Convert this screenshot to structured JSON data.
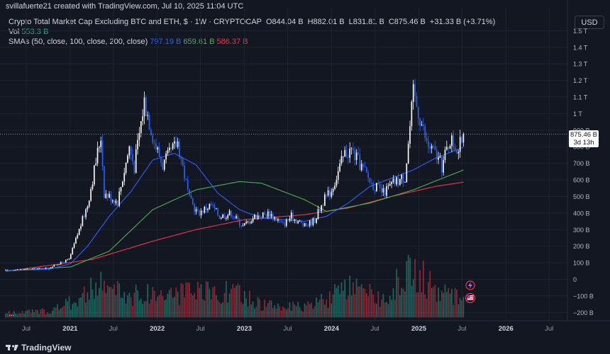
{
  "header": {
    "credit": "svillafuerte21 created with TradingView.com, Jul 10, 2025 11:04 UTC"
  },
  "legend": {
    "title": "Crypto Total Market Cap Excluding BTC and ETH, $ · 1W · CRYPTOCAP",
    "ohlc": {
      "open": "O844.04 B",
      "high": "H882.01 B",
      "low": "L831.81 B",
      "close": "C875.46 B",
      "change": "+31.33 B (+3.71%)"
    },
    "vol_label": "Vol",
    "vol_value": "553.3 B",
    "sma_label": "SMAs (50, close, 100, close, 200, close)",
    "sma50": "797.19 B",
    "sma100": "659.61 B",
    "sma200": "586.37 B",
    "more": "..."
  },
  "price_scale": {
    "currency": "USD",
    "ticks": [
      "1.5 T",
      "1.4 T",
      "1.3 T",
      "1.2 T",
      "1.1 T",
      "1 T",
      "900 B",
      "800 B",
      "700 B",
      "600 B",
      "500 B",
      "400 B",
      "300 B",
      "200 B",
      "100 B",
      "0",
      "−100 B",
      "−200 B"
    ],
    "last_price": "875.46 B",
    "countdown": "3d 13h"
  },
  "time_scale": {
    "ticks": [
      "Jul",
      "2021",
      "Jul",
      "2022",
      "Jul",
      "2023",
      "Jul",
      "2024",
      "Jul",
      "2025",
      "Jul",
      "2026",
      "Jul"
    ]
  },
  "branding": {
    "name": "TradingView"
  },
  "colors": {
    "background": "#131722",
    "candle_up": "#ffffff",
    "candle_down": "#2962ff",
    "sma50": "#2962ff",
    "sma100": "#4caf50",
    "sma200": "#f23645",
    "vol_up": "#22ab94",
    "vol_down": "#f23645",
    "grid": "#1f2330"
  },
  "chart_data": {
    "type": "candlestick",
    "timeframe": "1W",
    "unit": "B USD",
    "ylim": [
      -250,
      1600
    ],
    "xlim": [
      "2020-04-06",
      "2026-08-17"
    ],
    "grid": true,
    "price_keypoints": [
      [
        "2020-04-06",
        55
      ],
      [
        "2020-07-06",
        62
      ],
      [
        "2020-10-05",
        70
      ],
      [
        "2020-12-28",
        120
      ],
      [
        "2021-02-15",
        330
      ],
      [
        "2021-03-15",
        450
      ],
      [
        "2021-05-10",
        870
      ],
      [
        "2021-05-24",
        520
      ],
      [
        "2021-07-19",
        470
      ],
      [
        "2021-09-06",
        800
      ],
      [
        "2021-09-27",
        680
      ],
      [
        "2021-11-08",
        1080
      ],
      [
        "2021-12-20",
        830
      ],
      [
        "2022-01-24",
        690
      ],
      [
        "2022-03-28",
        830
      ],
      [
        "2022-05-16",
        480
      ],
      [
        "2022-06-20",
        400
      ],
      [
        "2022-08-15",
        450
      ],
      [
        "2022-09-19",
        380
      ],
      [
        "2022-11-07",
        400
      ],
      [
        "2022-12-26",
        320
      ],
      [
        "2023-02-13",
        380
      ],
      [
        "2023-04-17",
        400
      ],
      [
        "2023-06-12",
        330
      ],
      [
        "2023-07-17",
        380
      ],
      [
        "2023-09-11",
        320
      ],
      [
        "2023-10-23",
        360
      ],
      [
        "2023-11-27",
        470
      ],
      [
        "2024-01-01",
        540
      ],
      [
        "2024-02-26",
        760
      ],
      [
        "2024-03-25",
        780
      ],
      [
        "2024-05-06",
        680
      ],
      [
        "2024-06-17",
        580
      ],
      [
        "2024-08-05",
        520
      ],
      [
        "2024-09-16",
        580
      ],
      [
        "2024-11-04",
        620
      ],
      [
        "2024-12-09",
        1120
      ],
      [
        "2025-01-06",
        980
      ],
      [
        "2025-02-03",
        820
      ],
      [
        "2025-03-10",
        760
      ],
      [
        "2025-04-07",
        680
      ],
      [
        "2025-05-12",
        850
      ],
      [
        "2025-06-16",
        780
      ],
      [
        "2025-07-07",
        875.46
      ]
    ],
    "sma50_keypoints": [
      [
        "2020-04-06",
        52
      ],
      [
        "2020-10-05",
        60
      ],
      [
        "2021-01-04",
        95
      ],
      [
        "2021-03-15",
        200
      ],
      [
        "2021-06-14",
        380
      ],
      [
        "2021-09-13",
        530
      ],
      [
        "2021-12-13",
        720
      ],
      [
        "2022-03-14",
        760
      ],
      [
        "2022-06-13",
        690
      ],
      [
        "2022-09-12",
        520
      ],
      [
        "2022-12-12",
        420
      ],
      [
        "2023-03-13",
        370
      ],
      [
        "2023-06-12",
        360
      ],
      [
        "2023-09-11",
        350
      ],
      [
        "2023-12-11",
        380
      ],
      [
        "2024-03-11",
        460
      ],
      [
        "2024-06-10",
        560
      ],
      [
        "2024-09-09",
        610
      ],
      [
        "2024-12-09",
        660
      ],
      [
        "2025-03-10",
        730
      ],
      [
        "2025-07-07",
        797.19
      ]
    ],
    "sma100_keypoints": [
      [
        "2020-04-06",
        50
      ],
      [
        "2021-01-04",
        75
      ],
      [
        "2021-06-14",
        170
      ],
      [
        "2021-12-13",
        420
      ],
      [
        "2022-06-13",
        540
      ],
      [
        "2022-12-12",
        590
      ],
      [
        "2023-03-13",
        580
      ],
      [
        "2023-09-11",
        480
      ],
      [
        "2023-12-11",
        410
      ],
      [
        "2024-06-10",
        460
      ],
      [
        "2024-12-09",
        540
      ],
      [
        "2025-07-07",
        659.61
      ]
    ],
    "sma200_keypoints": [
      [
        "2020-04-06",
        48
      ],
      [
        "2021-04-05",
        120
      ],
      [
        "2021-12-13",
        230
      ],
      [
        "2022-06-13",
        300
      ],
      [
        "2023-01-02",
        360
      ],
      [
        "2023-09-11",
        390
      ],
      [
        "2024-03-11",
        430
      ],
      [
        "2024-09-09",
        500
      ],
      [
        "2025-03-10",
        560
      ],
      [
        "2025-07-07",
        586.37
      ]
    ],
    "volume_envelope": [
      [
        "2020-04-06",
        20
      ],
      [
        "2020-10-05",
        30
      ],
      [
        "2021-01-04",
        70
      ],
      [
        "2021-05-10",
        150
      ],
      [
        "2021-09-13",
        100
      ],
      [
        "2021-11-15",
        110
      ],
      [
        "2022-05-16",
        110
      ],
      [
        "2022-11-07",
        120
      ],
      [
        "2023-03-13",
        60
      ],
      [
        "2023-09-11",
        45
      ],
      [
        "2024-03-11",
        130
      ],
      [
        "2024-08-05",
        90
      ],
      [
        "2024-12-09",
        230
      ],
      [
        "2025-03-10",
        120
      ],
      [
        "2025-07-07",
        90
      ]
    ],
    "last_price": 875.46
  }
}
